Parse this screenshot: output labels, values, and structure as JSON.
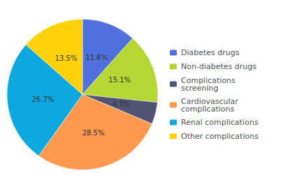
{
  "chart_data": {
    "type": "pie",
    "categories": [
      "Diabetes drugs",
      "Non-diabetes drugs",
      "Complications\nscreening",
      "Cardiovascular\ncomplications",
      "Renal complications",
      "Other complications"
    ],
    "values": [
      11.6,
      15.1,
      4.7,
      28.5,
      26.7,
      13.5
    ],
    "value_labels": [
      "11.6%",
      "15.1%",
      "4.7%",
      "28.5%",
      "26.7%",
      "13.5%"
    ],
    "data_labels": true,
    "legend": "right"
  }
}
